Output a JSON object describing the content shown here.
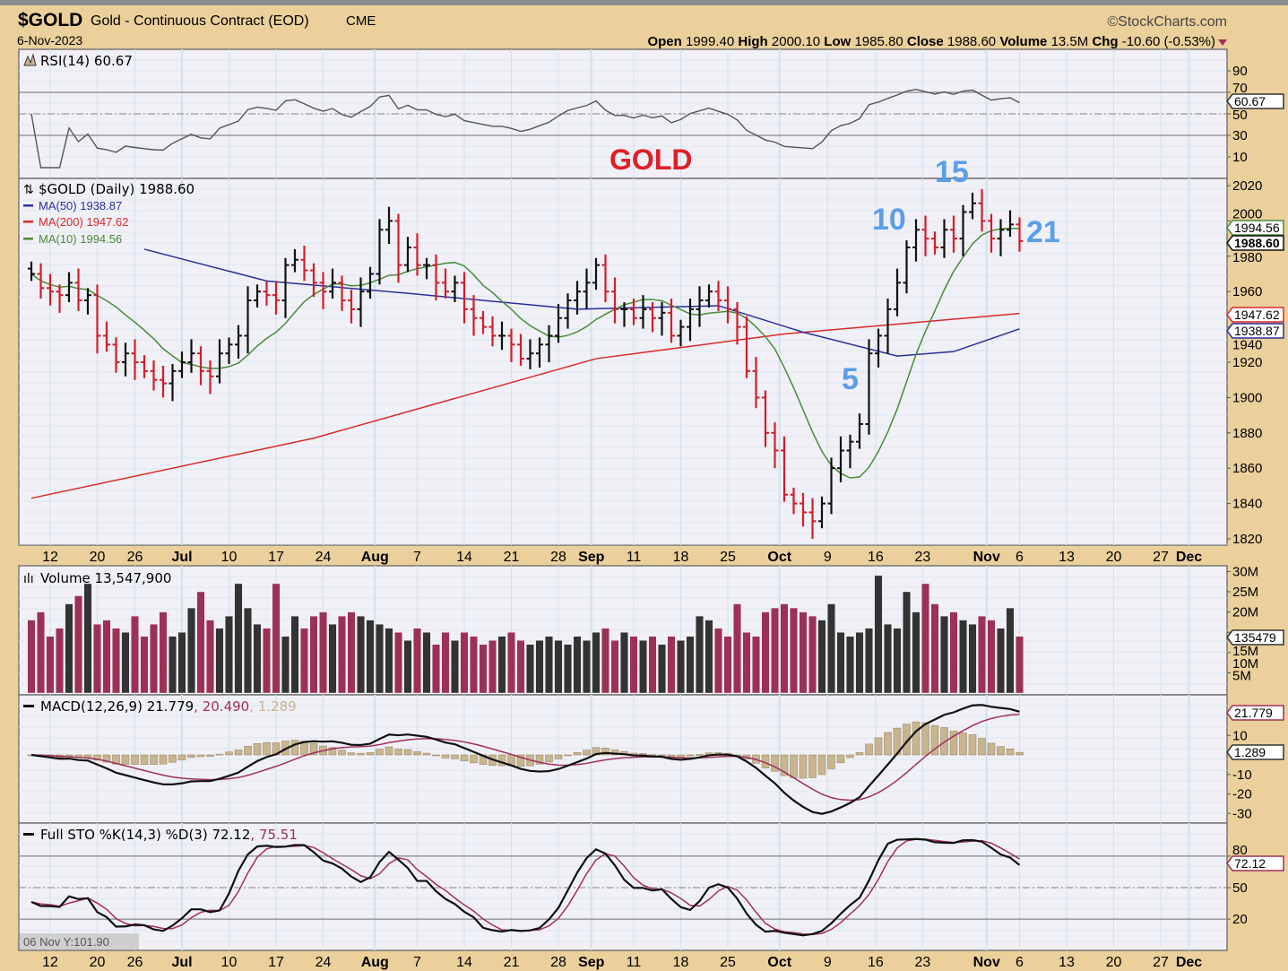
{
  "header": {
    "symbol": "$GOLD",
    "name": "Gold - Continuous Contract (EOD)",
    "exchange": "CME",
    "date": "6-Nov-2023",
    "copyright": "©StockCharts.com",
    "open_label": "Open",
    "open": "1999.40",
    "high_label": "High",
    "high": "2000.10",
    "low_label": "Low",
    "low": "1985.80",
    "close_label": "Close",
    "close": "1988.60",
    "volume_label": "Volume",
    "volume": "13.5M",
    "chg_label": "Chg",
    "chg": "-10.60 (-0.53%)"
  },
  "annotations": {
    "title": "GOLD",
    "n5": "5",
    "n10": "10",
    "n15": "15",
    "n21": "21"
  },
  "colors": {
    "bg": "#ebd09c",
    "panel": "#f0f0f6",
    "grid": "#cfe3ef",
    "up": "#111111",
    "down": "#d21e2a",
    "ma50": "#2a2f9a",
    "ma200": "#d92a2a",
    "ma10": "#4a8a3a",
    "vol_up": "#333333",
    "vol_down": "#9b3158",
    "hist": "#c8b48f",
    "annot": "#5b9ee8",
    "signal": "#a0305a"
  },
  "legends": {
    "rsi": "RSI(14) 60.67",
    "price": "$GOLD (Daily) 1988.60",
    "ma50": "MA(50) 1938.87",
    "ma200": "MA(200) 1947.62",
    "ma10": "MA(10) 1994.56",
    "volume": "Volume 13,547,900",
    "macd_a": "MACD(12,26,9) 21.779",
    "macd_b": ", 20.490",
    "macd_c": ", 1.289",
    "sto_a": "Full STO %K(14,3) %D(3) 72.12",
    "sto_b": ", 75.51"
  },
  "tags": {
    "rsi": "60.67",
    "ma10": "1994.56",
    "close": "1988.60",
    "ma200": "1947.62",
    "ma50": "1938.87",
    "volume": "135479",
    "macd": "21.779",
    "hist": "1.289",
    "sto": "72.12"
  },
  "status": "06 Nov Y:101.90",
  "chart_data": {
    "type": "ohlc",
    "title": "$GOLD Gold - Continuous Contract (EOD)",
    "closes": [
      1970,
      1962,
      1960,
      1958,
      1965,
      1955,
      1958,
      1935,
      1930,
      1920,
      1925,
      1920,
      1915,
      1910,
      1908,
      1915,
      1920,
      1925,
      1915,
      1912,
      1925,
      1930,
      1935,
      1955,
      1960,
      1958,
      1955,
      1975,
      1978,
      1972,
      1965,
      1960,
      1965,
      1955,
      1950,
      1960,
      1970,
      1995,
      2000,
      1975,
      1985,
      1975,
      1975,
      1965,
      1960,
      1965,
      1950,
      1945,
      1940,
      1935,
      1935,
      1930,
      1922,
      1925,
      1930,
      1935,
      1945,
      1955,
      1960,
      1965,
      1975,
      1960,
      1950,
      1950,
      1945,
      1950,
      1945,
      1948,
      1935,
      1940,
      1950,
      1955,
      1960,
      1955,
      1950,
      1940,
      1915,
      1900,
      1880,
      1870,
      1845,
      1840,
      1835,
      1830,
      1840,
      1860,
      1870,
      1875,
      1885,
      1925,
      1935,
      1950,
      1965,
      1985,
      1995,
      1990,
      1985,
      1995,
      1990,
      2005,
      2010,
      2000,
      1990,
      1995,
      1998,
      1988.6
    ],
    "volume_millions": [
      18,
      20,
      14,
      16,
      22,
      24,
      27,
      17,
      18,
      16,
      15,
      19,
      14,
      17,
      20,
      14,
      15,
      21,
      25,
      18,
      16,
      19,
      27,
      21,
      17,
      16,
      27,
      14,
      19,
      16,
      19,
      20,
      17,
      19,
      20,
      19,
      18,
      17,
      16,
      15,
      13,
      16,
      15,
      12,
      15,
      13,
      15,
      14,
      12,
      13,
      14,
      15,
      13,
      12,
      13,
      14,
      13,
      12,
      14,
      13,
      15,
      16,
      13,
      15,
      14,
      13,
      14,
      12,
      14,
      13,
      14,
      19,
      18,
      16,
      14,
      22,
      15,
      14,
      20,
      21,
      22,
      21,
      20,
      19,
      18,
      22,
      15,
      14,
      15,
      16,
      29,
      17,
      16,
      25,
      20,
      27,
      22,
      19,
      20,
      18,
      17,
      19,
      18,
      16,
      21,
      14
    ],
    "ma50": [
      [
        12,
        1984
      ],
      [
        25,
        1966
      ],
      [
        40,
        1959
      ],
      [
        58,
        1950
      ],
      [
        73,
        1952
      ],
      [
        82,
        1937
      ],
      [
        92,
        1923.5
      ],
      [
        98,
        1926
      ],
      [
        105,
        1938.87
      ]
    ],
    "ma200": [
      [
        0,
        1843
      ],
      [
        30,
        1877
      ],
      [
        60,
        1922
      ],
      [
        80,
        1936
      ],
      [
        105,
        1947.62
      ]
    ],
    "price_ticks": [
      2020,
      2000,
      1980,
      1960,
      1940,
      1920,
      1900,
      1880,
      1860,
      1840,
      1820
    ],
    "price_range": [
      1820,
      2020
    ],
    "x_ticks": [
      {
        "i": 2,
        "l": "12",
        "b": false
      },
      {
        "i": 7,
        "l": "20",
        "b": false
      },
      {
        "i": 11,
        "l": "26",
        "b": false
      },
      {
        "i": 16,
        "l": "Jul",
        "b": true
      },
      {
        "i": 21,
        "l": "10",
        "b": false
      },
      {
        "i": 26,
        "l": "17",
        "b": false
      },
      {
        "i": 31,
        "l": "24",
        "b": false
      },
      {
        "i": 36.5,
        "l": "Aug",
        "b": true
      },
      {
        "i": 41,
        "l": "7",
        "b": false
      },
      {
        "i": 46,
        "l": "14",
        "b": false
      },
      {
        "i": 51,
        "l": "21",
        "b": false
      },
      {
        "i": 56,
        "l": "28",
        "b": false
      },
      {
        "i": 59.5,
        "l": "Sep",
        "b": true
      },
      {
        "i": 64,
        "l": "11",
        "b": false
      },
      {
        "i": 69,
        "l": "18",
        "b": false
      },
      {
        "i": 74,
        "l": "25",
        "b": false
      },
      {
        "i": 79.5,
        "l": "Oct",
        "b": true
      },
      {
        "i": 84.6,
        "l": "9",
        "b": false
      },
      {
        "i": 89.7,
        "l": "16",
        "b": false
      },
      {
        "i": 94.7,
        "l": "23",
        "b": false
      },
      {
        "i": 101.5,
        "l": "Nov",
        "b": true
      },
      {
        "i": 105,
        "l": "6",
        "b": false
      },
      {
        "i": 110,
        "l": "13",
        "b": false
      },
      {
        "i": 115,
        "l": "20",
        "b": false
      },
      {
        "i": 120,
        "l": "27",
        "b": false
      },
      {
        "i": 123,
        "l": "Dec",
        "b": true
      }
    ],
    "rsi_ticks": [
      90,
      70,
      50,
      30,
      10
    ],
    "volume_ticks": [
      "30M",
      "25M",
      "20M",
      "15M",
      "10M",
      "5M"
    ],
    "macd_ticks": [
      10,
      -10,
      -20,
      -30
    ],
    "sto_ticks": [
      80,
      50,
      20
    ]
  }
}
